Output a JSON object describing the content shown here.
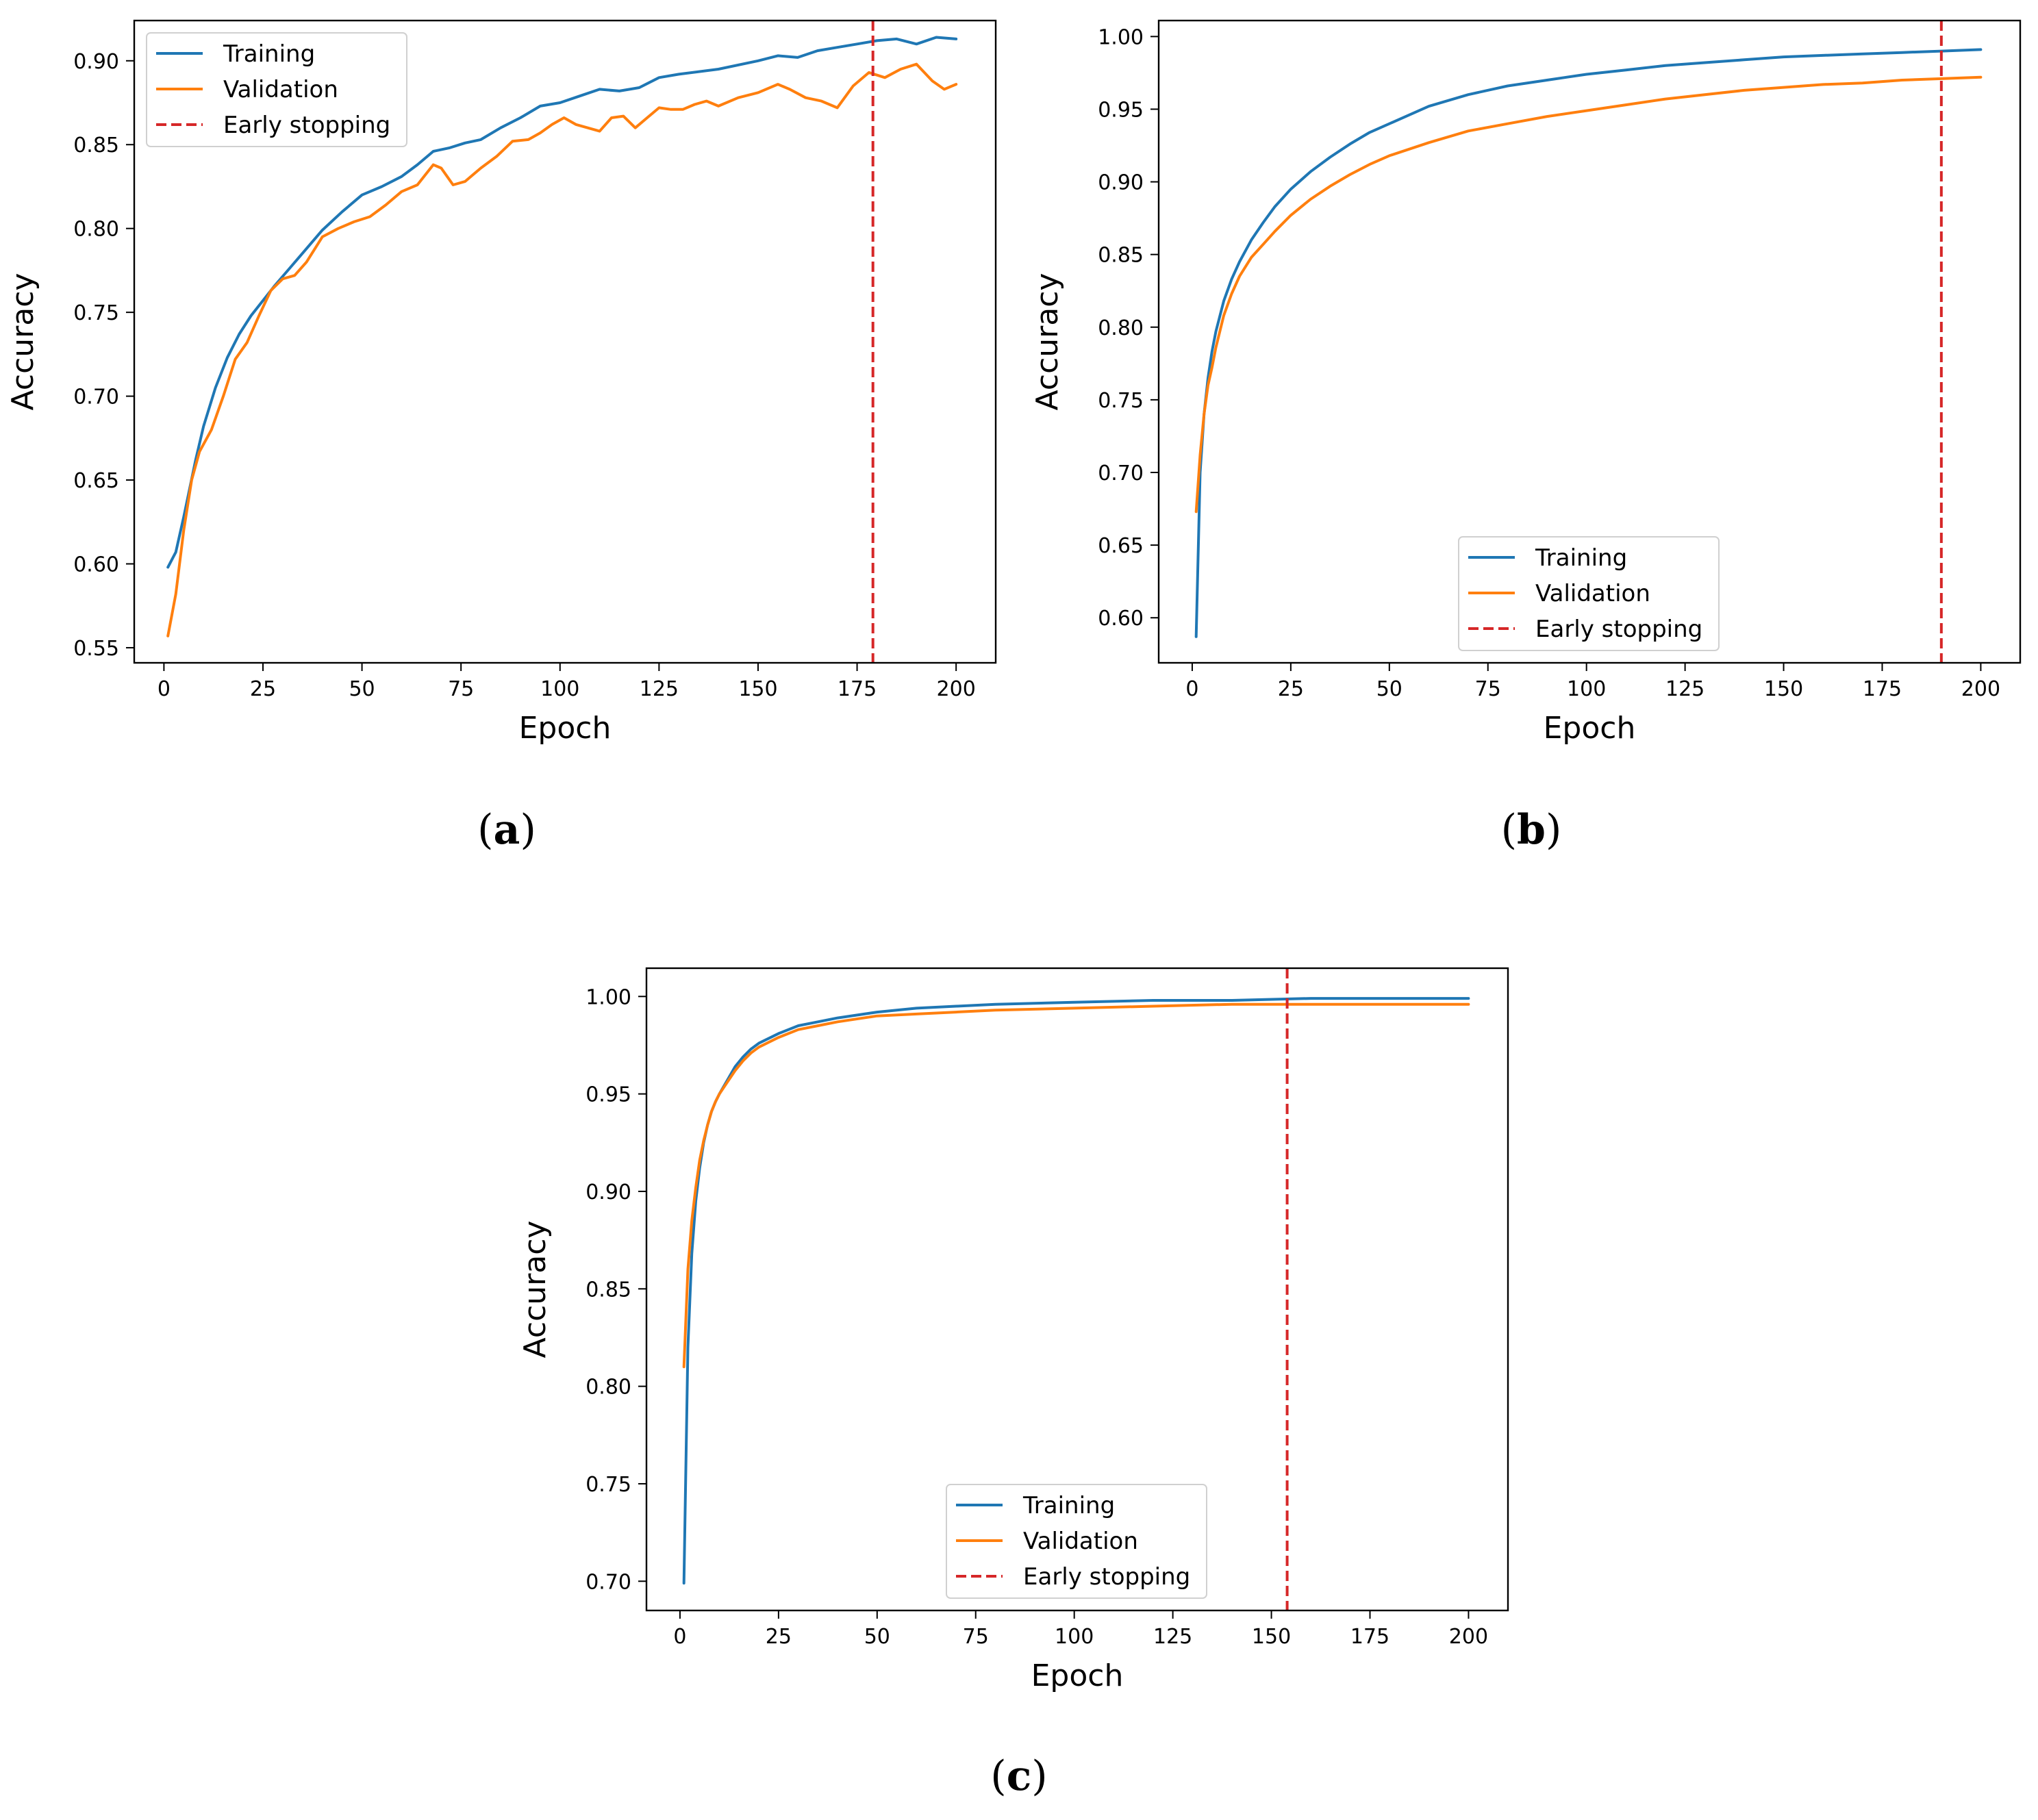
{
  "figure": {
    "panel_labels": [
      "a",
      "b",
      "c"
    ]
  },
  "colors": {
    "training": "#1f77b4",
    "validation": "#ff7f0e",
    "early_stopping": "#d62728"
  },
  "chart_data": [
    {
      "type": "line",
      "panel": "a",
      "xlabel": "Epoch",
      "ylabel": "Accuracy",
      "xlim": [
        -7.5,
        210
      ],
      "ylim": [
        0.541,
        0.924
      ],
      "xticks": [
        0,
        25,
        50,
        75,
        100,
        125,
        150,
        175,
        200
      ],
      "yticks": [
        0.55,
        0.6,
        0.65,
        0.7,
        0.75,
        0.8,
        0.85,
        0.9
      ],
      "tick_decimals": 2,
      "legend": {
        "position": "upper left",
        "entries": [
          "Training",
          "Validation",
          "Early stopping"
        ]
      },
      "early_stopping_epoch": 179,
      "series": [
        {
          "name": "Training",
          "x": [
            1,
            3,
            5,
            8,
            10,
            13,
            16,
            19,
            22,
            25,
            28,
            32,
            36,
            40,
            45,
            50,
            55,
            60,
            64,
            68,
            72,
            76,
            80,
            85,
            90,
            95,
            100,
            105,
            110,
            115,
            120,
            125,
            130,
            140,
            150,
            155,
            160,
            165,
            170,
            175,
            180,
            185,
            190,
            195,
            200
          ],
          "y": [
            0.598,
            0.607,
            0.628,
            0.662,
            0.682,
            0.705,
            0.723,
            0.737,
            0.748,
            0.757,
            0.766,
            0.777,
            0.788,
            0.799,
            0.81,
            0.82,
            0.825,
            0.831,
            0.838,
            0.846,
            0.848,
            0.851,
            0.853,
            0.86,
            0.866,
            0.873,
            0.875,
            0.879,
            0.883,
            0.882,
            0.884,
            0.89,
            0.892,
            0.895,
            0.9,
            0.903,
            0.902,
            0.906,
            0.908,
            0.91,
            0.912,
            0.913,
            0.91,
            0.914,
            0.913
          ],
          "color_key": "training"
        },
        {
          "name": "Validation",
          "x": [
            1,
            3,
            5,
            7,
            9,
            12,
            15,
            18,
            21,
            24,
            27,
            30,
            33,
            36,
            40,
            44,
            48,
            52,
            56,
            60,
            64,
            68,
            70,
            73,
            76,
            80,
            84,
            88,
            92,
            95,
            98,
            101,
            104,
            107,
            110,
            113,
            116,
            119,
            122,
            125,
            128,
            131,
            134,
            137,
            140,
            145,
            150,
            155,
            158,
            162,
            166,
            170,
            174,
            178,
            182,
            186,
            190,
            194,
            197,
            200
          ],
          "y": [
            0.557,
            0.582,
            0.62,
            0.65,
            0.667,
            0.68,
            0.7,
            0.722,
            0.732,
            0.748,
            0.763,
            0.77,
            0.772,
            0.78,
            0.795,
            0.8,
            0.804,
            0.807,
            0.814,
            0.822,
            0.826,
            0.838,
            0.836,
            0.826,
            0.828,
            0.836,
            0.843,
            0.852,
            0.853,
            0.857,
            0.862,
            0.866,
            0.862,
            0.86,
            0.858,
            0.866,
            0.867,
            0.86,
            0.866,
            0.872,
            0.871,
            0.871,
            0.874,
            0.876,
            0.873,
            0.878,
            0.881,
            0.886,
            0.883,
            0.878,
            0.876,
            0.872,
            0.885,
            0.893,
            0.89,
            0.895,
            0.898,
            0.888,
            0.883,
            0.886
          ],
          "color_key": "validation"
        }
      ]
    },
    {
      "type": "line",
      "panel": "b",
      "xlabel": "Epoch",
      "ylabel": "Accuracy",
      "xlim": [
        -8.5,
        210
      ],
      "ylim": [
        0.569,
        1.011
      ],
      "xticks": [
        0,
        25,
        50,
        75,
        100,
        125,
        150,
        175,
        200
      ],
      "yticks": [
        0.6,
        0.65,
        0.7,
        0.75,
        0.8,
        0.85,
        0.9,
        0.95,
        1.0
      ],
      "tick_decimals": 2,
      "legend": {
        "position": "lower center",
        "entries": [
          "Training",
          "Validation",
          "Early stopping"
        ]
      },
      "early_stopping_epoch": 190,
      "series": [
        {
          "name": "Training",
          "x": [
            1,
            2,
            3,
            4,
            5,
            6,
            8,
            10,
            12,
            15,
            18,
            21,
            25,
            30,
            35,
            40,
            45,
            50,
            60,
            70,
            80,
            90,
            100,
            110,
            120,
            130,
            140,
            150,
            160,
            170,
            180,
            190,
            200
          ],
          "y": [
            0.587,
            0.7,
            0.74,
            0.765,
            0.783,
            0.797,
            0.818,
            0.833,
            0.845,
            0.86,
            0.872,
            0.883,
            0.895,
            0.907,
            0.917,
            0.926,
            0.934,
            0.94,
            0.952,
            0.96,
            0.966,
            0.97,
            0.974,
            0.977,
            0.98,
            0.982,
            0.984,
            0.986,
            0.987,
            0.988,
            0.989,
            0.99,
            0.991
          ],
          "color_key": "training"
        },
        {
          "name": "Validation",
          "x": [
            1,
            2,
            3,
            4,
            5,
            6,
            8,
            10,
            12,
            15,
            18,
            21,
            25,
            30,
            35,
            40,
            45,
            50,
            60,
            70,
            80,
            90,
            100,
            110,
            120,
            130,
            140,
            150,
            160,
            170,
            180,
            190,
            200
          ],
          "y": [
            0.673,
            0.712,
            0.74,
            0.76,
            0.772,
            0.786,
            0.808,
            0.823,
            0.835,
            0.848,
            0.857,
            0.866,
            0.877,
            0.888,
            0.897,
            0.905,
            0.912,
            0.918,
            0.927,
            0.935,
            0.94,
            0.945,
            0.949,
            0.953,
            0.957,
            0.96,
            0.963,
            0.965,
            0.967,
            0.968,
            0.97,
            0.971,
            0.972
          ],
          "color_key": "validation"
        }
      ]
    },
    {
      "type": "line",
      "panel": "c",
      "xlabel": "Epoch",
      "ylabel": "Accuracy",
      "xlim": [
        -8.5,
        210
      ],
      "ylim": [
        0.685,
        1.0145
      ],
      "xticks": [
        0,
        25,
        50,
        75,
        100,
        125,
        150,
        175,
        200
      ],
      "yticks": [
        0.7,
        0.75,
        0.8,
        0.85,
        0.9,
        0.95,
        1.0
      ],
      "tick_decimals": 2,
      "legend": {
        "position": "lower center",
        "entries": [
          "Training",
          "Validation",
          "Early stopping"
        ]
      },
      "early_stopping_epoch": 154,
      "series": [
        {
          "name": "Training",
          "x": [
            1,
            2,
            3,
            4,
            5,
            6,
            7,
            8,
            9,
            10,
            12,
            14,
            16,
            18,
            20,
            25,
            30,
            35,
            40,
            50,
            60,
            70,
            80,
            100,
            120,
            140,
            160,
            180,
            200
          ],
          "y": [
            0.699,
            0.82,
            0.868,
            0.895,
            0.912,
            0.925,
            0.934,
            0.941,
            0.946,
            0.95,
            0.957,
            0.964,
            0.969,
            0.973,
            0.976,
            0.981,
            0.985,
            0.987,
            0.989,
            0.992,
            0.994,
            0.995,
            0.996,
            0.997,
            0.998,
            0.998,
            0.999,
            0.999,
            0.999
          ],
          "color_key": "training"
        },
        {
          "name": "Validation",
          "x": [
            1,
            2,
            3,
            4,
            5,
            6,
            7,
            8,
            9,
            10,
            12,
            14,
            16,
            18,
            20,
            25,
            30,
            35,
            40,
            50,
            60,
            70,
            80,
            100,
            120,
            140,
            160,
            180,
            200
          ],
          "y": [
            0.81,
            0.86,
            0.885,
            0.902,
            0.916,
            0.926,
            0.934,
            0.941,
            0.946,
            0.95,
            0.956,
            0.962,
            0.967,
            0.971,
            0.974,
            0.979,
            0.983,
            0.985,
            0.987,
            0.99,
            0.991,
            0.992,
            0.993,
            0.994,
            0.995,
            0.996,
            0.996,
            0.996,
            0.996
          ],
          "color_key": "validation"
        }
      ]
    }
  ]
}
